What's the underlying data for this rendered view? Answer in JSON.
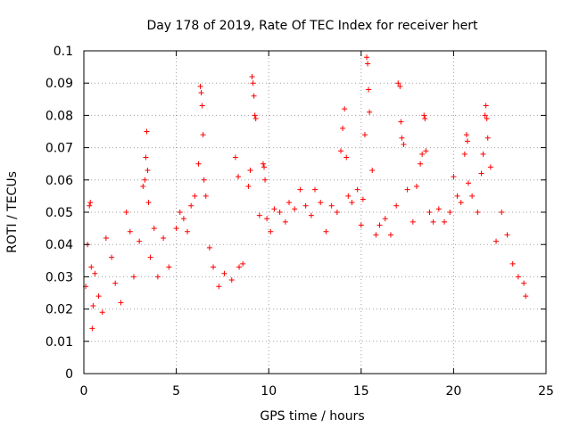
{
  "chart_data": {
    "type": "scatter",
    "title": "Day 178 of 2019, Rate Of TEC Index for receiver hert",
    "xlabel": "GPS time / hours",
    "ylabel": "ROTI / TECUs",
    "xlim": [
      0,
      25
    ],
    "ylim": [
      0,
      0.1
    ],
    "xticks": [
      0,
      5,
      10,
      15,
      20,
      25
    ],
    "xtick_labels": [
      "0",
      "5",
      "10",
      "15",
      "20",
      "25"
    ],
    "yticks": [
      0,
      0.01,
      0.02,
      0.03,
      0.04,
      0.05,
      0.06,
      0.07,
      0.08,
      0.09,
      0.1
    ],
    "ytick_labels": [
      "0",
      "0.01",
      "0.02",
      "0.03",
      "0.04",
      "0.05",
      "0.06",
      "0.07",
      "0.08",
      "0.09",
      "0.1"
    ],
    "grid": true,
    "marker": "+",
    "color": "#ff0000",
    "series": [
      {
        "name": "ROTI",
        "x": [
          0.1,
          0.2,
          0.3,
          0.35,
          0.4,
          0.45,
          0.5,
          0.6,
          0.8,
          1.0,
          1.2,
          1.5,
          1.7,
          2.0,
          2.3,
          2.5,
          2.7,
          3.0,
          3.2,
          3.3,
          3.35,
          3.4,
          3.45,
          3.5,
          3.6,
          3.8,
          4.0,
          4.3,
          4.6,
          5.0,
          5.2,
          5.4,
          5.6,
          5.8,
          6.0,
          6.2,
          6.3,
          6.35,
          6.4,
          6.45,
          6.5,
          6.6,
          6.8,
          7.0,
          7.3,
          7.6,
          8.0,
          8.2,
          8.35,
          8.4,
          8.6,
          8.9,
          9.0,
          9.1,
          9.15,
          9.2,
          9.25,
          9.3,
          9.5,
          9.7,
          9.75,
          9.8,
          9.9,
          10.1,
          10.3,
          10.6,
          10.9,
          11.1,
          11.4,
          11.7,
          12.0,
          12.3,
          12.5,
          12.8,
          13.1,
          13.4,
          13.7,
          13.9,
          14.0,
          14.1,
          14.2,
          14.3,
          14.5,
          14.8,
          15.0,
          15.1,
          15.2,
          15.3,
          15.35,
          15.4,
          15.45,
          15.6,
          15.8,
          16.0,
          16.3,
          16.6,
          16.9,
          17.0,
          17.1,
          17.15,
          17.2,
          17.3,
          17.5,
          17.8,
          18.0,
          18.2,
          18.3,
          18.4,
          18.45,
          18.5,
          18.7,
          18.9,
          19.2,
          19.5,
          19.8,
          20.0,
          20.2,
          20.4,
          20.6,
          20.7,
          20.75,
          20.8,
          21.0,
          21.3,
          21.5,
          21.6,
          21.7,
          21.75,
          21.8,
          21.85,
          22.0,
          22.3,
          22.6,
          22.9,
          23.2,
          23.5,
          23.8,
          23.9
        ],
        "y": [
          0.027,
          0.04,
          0.052,
          0.053,
          0.033,
          0.014,
          0.021,
          0.031,
          0.024,
          0.019,
          0.042,
          0.036,
          0.028,
          0.022,
          0.05,
          0.044,
          0.03,
          0.041,
          0.058,
          0.06,
          0.067,
          0.075,
          0.063,
          0.053,
          0.036,
          0.045,
          0.03,
          0.042,
          0.033,
          0.045,
          0.05,
          0.048,
          0.044,
          0.052,
          0.055,
          0.065,
          0.089,
          0.087,
          0.083,
          0.074,
          0.06,
          0.055,
          0.039,
          0.033,
          0.027,
          0.031,
          0.029,
          0.067,
          0.061,
          0.033,
          0.034,
          0.058,
          0.063,
          0.092,
          0.09,
          0.086,
          0.08,
          0.079,
          0.049,
          0.065,
          0.064,
          0.06,
          0.048,
          0.044,
          0.051,
          0.05,
          0.047,
          0.053,
          0.051,
          0.057,
          0.052,
          0.049,
          0.057,
          0.053,
          0.044,
          0.052,
          0.05,
          0.069,
          0.076,
          0.082,
          0.067,
          0.055,
          0.053,
          0.057,
          0.046,
          0.054,
          0.074,
          0.098,
          0.096,
          0.088,
          0.081,
          0.063,
          0.043,
          0.046,
          0.048,
          0.043,
          0.052,
          0.09,
          0.089,
          0.078,
          0.073,
          0.071,
          0.057,
          0.047,
          0.058,
          0.065,
          0.068,
          0.08,
          0.079,
          0.069,
          0.05,
          0.047,
          0.051,
          0.047,
          0.05,
          0.061,
          0.055,
          0.053,
          0.068,
          0.074,
          0.072,
          0.059,
          0.055,
          0.05,
          0.062,
          0.068,
          0.08,
          0.083,
          0.079,
          0.073,
          0.064,
          0.041,
          0.05,
          0.043,
          0.034,
          0.03,
          0.028,
          0.024
        ]
      }
    ]
  }
}
